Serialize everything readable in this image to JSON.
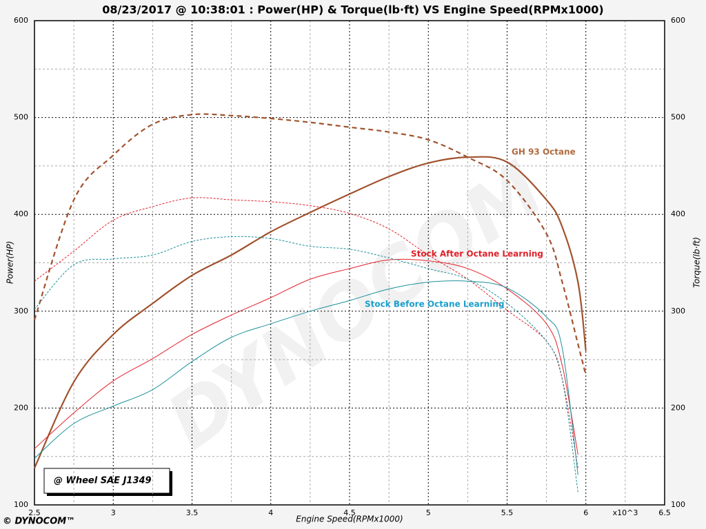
{
  "chart_data": {
    "type": "line",
    "title": "08/23/2017 @ 10:38:01 : Power(HP) & Torque(lb·ft) VS Engine Speed(RPMx1000)",
    "xlabel": "Engine Speed(RPMx1000)",
    "ylabel": "Power(HP)",
    "y2label": "Torque(lb·ft)",
    "x_multiplier": "x10^3",
    "note": "@ Wheel SAE J1349",
    "logo": "© DYNOCOM™",
    "watermark": "DYNOCOM",
    "xlim": [
      2.5,
      6.5
    ],
    "xticks": [
      2.5,
      3,
      3.5,
      4,
      4.5,
      5,
      5.5,
      6,
      6.5
    ],
    "xminor": [
      2.75,
      3.25,
      3.75,
      4.25,
      4.75,
      5.25,
      5.75,
      6.25
    ],
    "ylim": [
      100,
      600
    ],
    "yticks": [
      100,
      200,
      300,
      400,
      500,
      600
    ],
    "yminor": [
      150,
      250,
      350,
      450,
      550
    ],
    "y2lim": [
      100,
      600
    ],
    "y2ticks": [
      100,
      200,
      300,
      400,
      500,
      600
    ],
    "grid": true,
    "x": [
      2.5,
      2.75,
      3.0,
      3.25,
      3.5,
      3.75,
      4.0,
      4.25,
      4.5,
      4.75,
      5.0,
      5.25,
      5.5,
      5.75,
      5.85,
      5.95,
      6.0
    ],
    "series": [
      {
        "name": "GH 93 Octane",
        "color": "#a0522d",
        "power": [
          138,
          227,
          276,
          308,
          337,
          358,
          382,
          402,
          421,
          439,
          453,
          459,
          454,
          415,
          387,
          330,
          259
        ],
        "torque": [
          291,
          415,
          461,
          493,
          503,
          502,
          499,
          495,
          490,
          485,
          477,
          459,
          435,
          380,
          330,
          266,
          234
        ]
      },
      {
        "name": "Stock After Octane Learning",
        "color": "#e0202a",
        "power": [
          158,
          195,
          228,
          251,
          276,
          296,
          314,
          333,
          344,
          353,
          352,
          344,
          323,
          287,
          244,
          152,
          null
        ],
        "torque": [
          331,
          362,
          394,
          408,
          417,
          415,
          413,
          409,
          401,
          385,
          358,
          333,
          301,
          269,
          230,
          138,
          null
        ]
      },
      {
        "name": "Stock Before Octane Learning",
        "color": "#1a8f9a",
        "power": [
          148,
          184,
          202,
          219,
          248,
          273,
          287,
          300,
          311,
          323,
          330,
          331,
          324,
          294,
          262,
          131,
          null
        ],
        "torque": [
          302,
          348,
          354,
          358,
          372,
          377,
          375,
          367,
          364,
          355,
          344,
          333,
          308,
          269,
          230,
          113,
          null
        ]
      }
    ]
  }
}
